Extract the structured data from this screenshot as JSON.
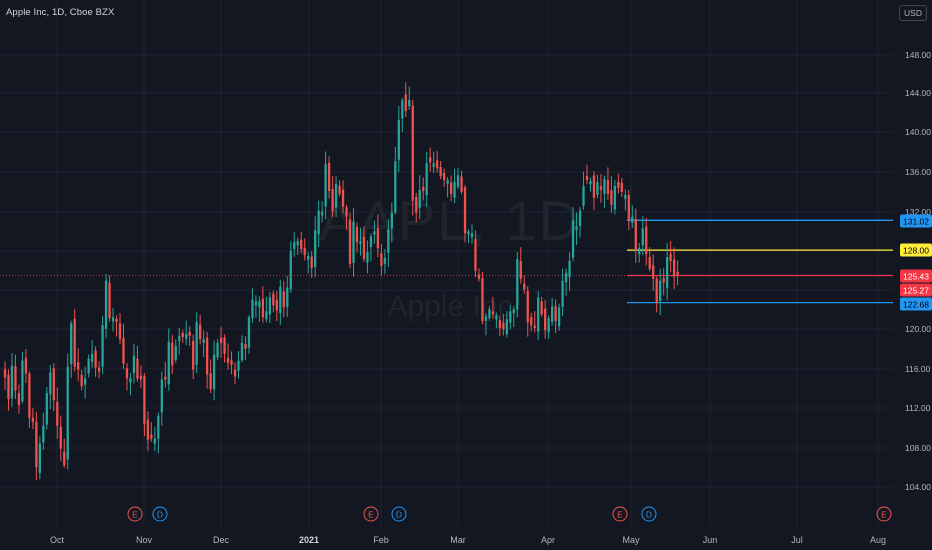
{
  "header": {
    "symbol_title": "Apple Inc, 1D, Cboe BZX",
    "currency_button": "USD"
  },
  "watermark": {
    "symbol": "AAPL, 1D",
    "description": "Apple Inc"
  },
  "colors": {
    "background": "#131722",
    "grid": "#1f2330",
    "up": "#26a69a",
    "down": "#ef5350",
    "axis_text": "#b2b5be",
    "line_blue": "#2196f3",
    "line_yellow": "#ffeb3b",
    "line_red": "#f23645"
  },
  "price_axis": {
    "ticks": [
      "148.00",
      "144.00",
      "140.00",
      "136.00",
      "132.00",
      "128.00",
      "124.00",
      "120.00",
      "116.00",
      "112.00",
      "108.00",
      "104.00"
    ]
  },
  "time_axis": {
    "ticks": [
      "Oct",
      "Nov",
      "Dec",
      "2021",
      "Feb",
      "Mar",
      "Apr",
      "May",
      "Jun",
      "Jul",
      "Aug"
    ]
  },
  "price_labels": [
    {
      "value": "131.02",
      "color": "#2196f3",
      "text_color": "#000000"
    },
    {
      "value": "128.00",
      "color": "#ffeb3b",
      "text_color": "#000000"
    },
    {
      "value": "125.43",
      "color": "#f23645",
      "text_color": "#ffffff"
    },
    {
      "value": "125.27",
      "color": "#f23645",
      "text_color": "#ffffff"
    },
    {
      "value": "122.68",
      "color": "#2196f3",
      "text_color": "#000000"
    }
  ],
  "event_markers": [
    {
      "type": "E",
      "color": "#ef5350"
    },
    {
      "type": "D",
      "color": "#2196f3"
    },
    {
      "type": "E",
      "color": "#ef5350"
    },
    {
      "type": "D",
      "color": "#2196f3"
    },
    {
      "type": "E",
      "color": "#ef5350"
    },
    {
      "type": "D",
      "color": "#2196f3"
    },
    {
      "type": "E",
      "color": "#ef5350"
    }
  ],
  "chart_data": {
    "type": "candlestick",
    "symbol": "AAPL",
    "interval": "1D",
    "exchange": "Cboe BZX",
    "last_price": 125.43,
    "ylim": [
      102,
      151
    ],
    "horizontal_lines": [
      {
        "value": 131.02,
        "color": "#2196f3"
      },
      {
        "value": 128.0,
        "color": "#ffeb3b"
      },
      {
        "value": 125.43,
        "color": "#f23645"
      },
      {
        "value": 122.68,
        "color": "#2196f3"
      }
    ],
    "current_price_dotted": 125.43,
    "grid": true,
    "closes": [
      115.1,
      112.9,
      116.3,
      113.8,
      112.3,
      116.8,
      115.5,
      111.0,
      110.6,
      106.0,
      108.4,
      110.2,
      113.5,
      115.6,
      112.8,
      110.2,
      107.9,
      106.2,
      116.2,
      120.6,
      116.2,
      115.9,
      114.2,
      115.0,
      117.0,
      117.5,
      116.1,
      115.7,
      120.4,
      124.9,
      121.1,
      121.2,
      120.7,
      119.0,
      116.5,
      115.0,
      115.0,
      117.3,
      115.0,
      114.9,
      110.4,
      108.8,
      108.9,
      108.9,
      111.2,
      114.9,
      114.9,
      118.7,
      116.3,
      118.3,
      119.3,
      119.2,
      119.5,
      119.3,
      115.9,
      120.7,
      119.0,
      119.0,
      115.4,
      113.9,
      117.4,
      118.6,
      118.6,
      117.5,
      116.6,
      116.4,
      115.2,
      116.8,
      118.6,
      118.0,
      121.2,
      123.0,
      122.8,
      122.8,
      121.2,
      121.8,
      123.2,
      122.4,
      121.9,
      124.3,
      122.2,
      124.2,
      127.9,
      128.8,
      128.9,
      128.1,
      127.5,
      127.4,
      126.2,
      130.0,
      132.0,
      131.9,
      136.7,
      134.0,
      131.9,
      134.7,
      133.7,
      132.4,
      131.4,
      126.6,
      130.9,
      128.8,
      128.9,
      127.1,
      127.8,
      129.4,
      129.9,
      128.2,
      126.4,
      127.2,
      130.1,
      131.8,
      137.0,
      141.2,
      143.2,
      142.1,
      143.2,
      133.0,
      131.8,
      134.1,
      134.0,
      136.8,
      136.9,
      136.8,
      136.3,
      135.5,
      135.1,
      135.1,
      133.7,
      134.9,
      135.6,
      133.9,
      129.7,
      129.9,
      129.7,
      125.9,
      125.1,
      120.8,
      121.3,
      122.0,
      121.5,
      121.4,
      120.1,
      120.0,
      121.0,
      121.8,
      122.0,
      127.1,
      125.1,
      124.0,
      120.7,
      120.4,
      120.1,
      123.2,
      121.5,
      119.9,
      121.1,
      122.3,
      120.8,
      122.2,
      124.9,
      125.7,
      126.9,
      131.0,
      130.4,
      132.0,
      134.5,
      135.1,
      135.0,
      133.3,
      134.9,
      134.1,
      135.2,
      133.7,
      132.6,
      134.5,
      134.3,
      133.9,
      133.6,
      131.1,
      131.4,
      127.9,
      128.2,
      130.2,
      127.6,
      126.1,
      125.1,
      122.7,
      124.9,
      124.7,
      127.3,
      126.9,
      125.3,
      125.4
    ]
  }
}
